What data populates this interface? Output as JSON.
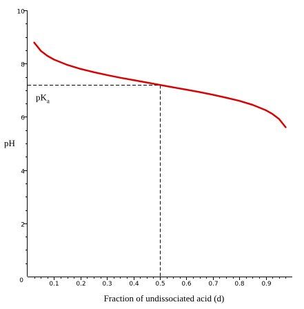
{
  "chart_data": {
    "type": "line",
    "title": "",
    "xlabel": "Fraction of undissociated acid (d)",
    "ylabel": "pH",
    "xlim": [
      0,
      1.0
    ],
    "ylim": [
      0,
      10
    ],
    "x_ticks": [
      0.1,
      0.2,
      0.3,
      0.4,
      0.5,
      0.6,
      0.7,
      0.8,
      0.9
    ],
    "x_tick_labels": [
      "0.1",
      "0.2",
      "0.3",
      "0.4",
      "0.5",
      "0.6",
      "0.7",
      "0.8",
      "0.9"
    ],
    "x_origin_label": "0",
    "y_ticks": [
      2,
      4,
      6,
      8,
      10
    ],
    "y_tick_labels": [
      "2",
      "4",
      "6",
      "8",
      "10"
    ],
    "grid": false,
    "legend": "none",
    "series": [
      {
        "color": "#dd0000",
        "x": [
          0.025,
          0.05,
          0.075,
          0.1,
          0.15,
          0.2,
          0.25,
          0.3,
          0.35,
          0.4,
          0.45,
          0.5,
          0.55,
          0.6,
          0.65,
          0.7,
          0.75,
          0.8,
          0.85,
          0.9,
          0.925,
          0.95,
          0.975
        ],
        "y": [
          8.79,
          8.48,
          8.29,
          8.15,
          7.95,
          7.8,
          7.68,
          7.57,
          7.47,
          7.38,
          7.29,
          7.2,
          7.11,
          7.02,
          6.93,
          6.83,
          6.72,
          6.6,
          6.45,
          6.25,
          6.11,
          5.92,
          5.61
        ]
      }
    ],
    "annotations": [
      {
        "text": "pK",
        "subscript": "a",
        "guide_point": {
          "x": 0.5,
          "y": 7.2
        }
      }
    ]
  }
}
